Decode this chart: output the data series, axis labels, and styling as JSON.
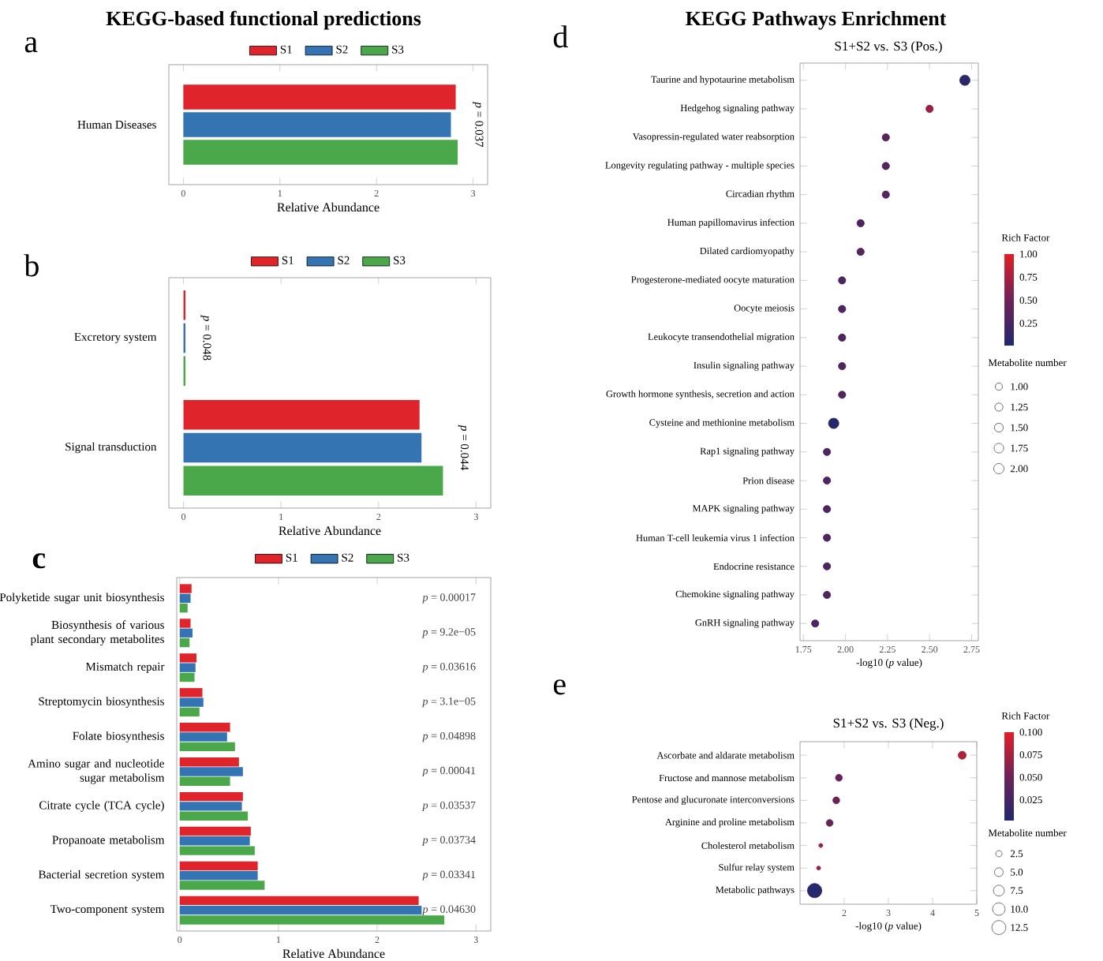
{
  "chart_data": [
    {
      "type": "bar",
      "orientation": "horizontal",
      "title": "KEGG-based functional predictions",
      "xlabel": "Relative Abundance",
      "categories": [
        "Human Diseases"
      ],
      "series": [
        {
          "name": "S1",
          "color": "#e0242b",
          "values": [
            2.82
          ]
        },
        {
          "name": "S2",
          "color": "#3474b3",
          "values": [
            2.77
          ]
        },
        {
          "name": "S3",
          "color": "#4aa84a",
          "values": [
            2.84
          ]
        }
      ],
      "xlim": [
        -0.15,
        3.15
      ],
      "xticks": [
        0,
        1,
        2,
        3
      ],
      "legend": "top",
      "annotations": [
        "a",
        "*p* = 0.037"
      ]
    },
    {
      "type": "bar",
      "orientation": "horizontal",
      "xlabel": "Relative Abundance",
      "categories": [
        "Excretory system",
        "Signal transduction"
      ],
      "series": [
        {
          "name": "S1",
          "color": "#e0242b",
          "values": [
            0.02,
            2.42
          ]
        },
        {
          "name": "S2",
          "color": "#3474b3",
          "values": [
            0.02,
            2.44
          ]
        },
        {
          "name": "S3",
          "color": "#4aa84a",
          "values": [
            0.02,
            2.66
          ]
        }
      ],
      "xlim": [
        -0.15,
        3.15
      ],
      "xticks": [
        0,
        1,
        2,
        3
      ],
      "legend": "top",
      "annotations": [
        "b",
        "*p* = 0.048",
        "*p* = 0.044"
      ]
    },
    {
      "type": "bar",
      "orientation": "horizontal",
      "xlabel": "Relative Abundance",
      "categories": [
        "Polyketide sugar unit biosynthesis",
        "Biosynthesis of various plant secondary metabolites",
        "Mismatch repair",
        "Streptomycin biosynthesis",
        "Folate biosynthesis",
        "Amino sugar and nucleotide sugar metabolism",
        "Citrate cycle (TCA cycle)",
        "Propanoate metabolism",
        "Bacterial secretion system",
        "Two-component system"
      ],
      "series": [
        {
          "name": "S1",
          "color": "#e0242b",
          "values": [
            0.12,
            0.11,
            0.17,
            0.23,
            0.51,
            0.6,
            0.64,
            0.72,
            0.79,
            2.42
          ]
        },
        {
          "name": "S2",
          "color": "#3474b3",
          "values": [
            0.11,
            0.13,
            0.16,
            0.24,
            0.48,
            0.64,
            0.63,
            0.71,
            0.79,
            2.45
          ]
        },
        {
          "name": "S3",
          "color": "#4aa84a",
          "values": [
            0.08,
            0.1,
            0.15,
            0.2,
            0.56,
            0.51,
            0.69,
            0.76,
            0.86,
            2.68
          ]
        }
      ],
      "xlim": [
        -0.03,
        3.15
      ],
      "xticks": [
        0,
        1,
        2,
        3
      ],
      "legend": "top",
      "annotations": [
        "c",
        "*p* = 0.00017",
        "*p* = 9.2e−05",
        "*p* = 0.03616",
        "*p* = 3.1e−05",
        "*p* = 0.04898",
        "*p* = 0.00041",
        "*p* = 0.03537",
        "*p* = 0.03734",
        "*p* = 0.03341",
        "*p* = 0.04630"
      ]
    },
    {
      "type": "bubble",
      "orientation": "horizontal",
      "title": "KEGG Pathways Enrichment",
      "subtitle": "S1+S2 vs. S3 (Pos.)",
      "xlabel": "-log10 (*p* value)",
      "clabel": "Rich Factor",
      "legend_title": "Metabolite number",
      "categories": [
        "Taurine and hypotaurine metabolism",
        "Hedgehog signaling pathway",
        "Vasopressin-regulated water reabsorption",
        "Longevity regulating pathway - multiple species",
        "Circadian rhythm",
        "Human papillomavirus infection",
        "Dilated cardiomyopathy",
        "Progesterone-mediated oocyte maturation",
        "Oocyte meiosis",
        "Leukocyte transendothelial migration",
        "Insulin signaling pathway",
        "Growth hormone synthesis, secretion and action",
        "Cysteine and methionine metabolism",
        "Rap1 signaling pathway",
        "Prion disease",
        "MAPK signaling pathway",
        "Human T-cell leukemia virus 1 infection",
        "Endocrine resistance",
        "Chemokine signaling pathway",
        "GnRH signaling pathway"
      ],
      "values": [
        2.71,
        2.5,
        2.24,
        2.24,
        2.24,
        2.09,
        2.09,
        1.98,
        1.98,
        1.98,
        1.98,
        1.98,
        1.93,
        1.89,
        1.89,
        1.89,
        1.89,
        1.89,
        1.89,
        1.82
      ],
      "sizes": [
        2,
        1,
        1,
        1,
        1,
        1,
        1,
        1,
        1,
        1,
        1,
        1,
        2,
        1,
        1,
        1,
        1,
        1,
        1,
        1
      ],
      "cvalues": [
        0.08,
        0.7,
        0.4,
        0.35,
        0.35,
        0.3,
        0.35,
        0.3,
        0.3,
        0.3,
        0.3,
        0.3,
        0.05,
        0.3,
        0.3,
        0.3,
        0.3,
        0.3,
        0.3,
        0.3
      ],
      "size_legend": [
        {
          "value": 1,
          "label": "1.00"
        },
        {
          "value": 1.25,
          "label": "1.25"
        },
        {
          "value": 1.5,
          "label": "1.50"
        },
        {
          "value": 1.75,
          "label": "1.75"
        },
        {
          "value": 2,
          "label": "2.00"
        }
      ],
      "clim": [
        0.01,
        1
      ],
      "cticks": [
        0.25,
        {
          "value": 0.5,
          "label": "0.50"
        },
        0.75,
        {
          "value": 1,
          "label": "1.00"
        }
      ],
      "xlim": [
        1.73,
        2.79
      ],
      "xticks": [
        1.75,
        {
          "value": 2,
          "label": "2.00"
        },
        2.25,
        {
          "value": 2.5,
          "label": "2.50"
        },
        2.75
      ],
      "annotations": [
        "d"
      ]
    },
    {
      "type": "bubble",
      "orientation": "horizontal",
      "title": "S1+S2 vs. S3 (Neg.)",
      "xlabel": "-log10 (*p* value)",
      "clabel": "Rich Factor",
      "legend_title": "Metabolite number",
      "categories": [
        "Ascorbate and aldarate metabolism",
        "Fructose and mannose metabolism",
        "Pentose and glucuronate interconversions",
        "Arginine and proline metabolism",
        "Cholesterol metabolism",
        "Sulfur relay system",
        "Metabolic pathways"
      ],
      "values": [
        4.67,
        1.88,
        1.82,
        1.67,
        1.47,
        1.42,
        1.33
      ],
      "sizes": [
        4,
        3,
        3,
        3,
        1,
        1,
        13
      ],
      "cvalues": [
        0.08,
        0.05,
        0.05,
        0.045,
        0.07,
        0.07,
        0.005
      ],
      "size_legend": [
        2.5,
        {
          "value": 5,
          "label": "5.0"
        },
        7.5,
        {
          "value": 10,
          "label": "10.0"
        },
        12.5
      ],
      "clim": [
        0.002,
        0.1
      ],
      "cticks": [
        0.025,
        {
          "value": 0.05,
          "label": "0.050"
        },
        0.075,
        {
          "value": 0.1,
          "label": "0.100"
        }
      ],
      "xlim": [
        1.0,
        5.0
      ],
      "xticks": [
        2,
        3,
        4,
        5
      ],
      "annotations": [
        "e"
      ]
    }
  ]
}
